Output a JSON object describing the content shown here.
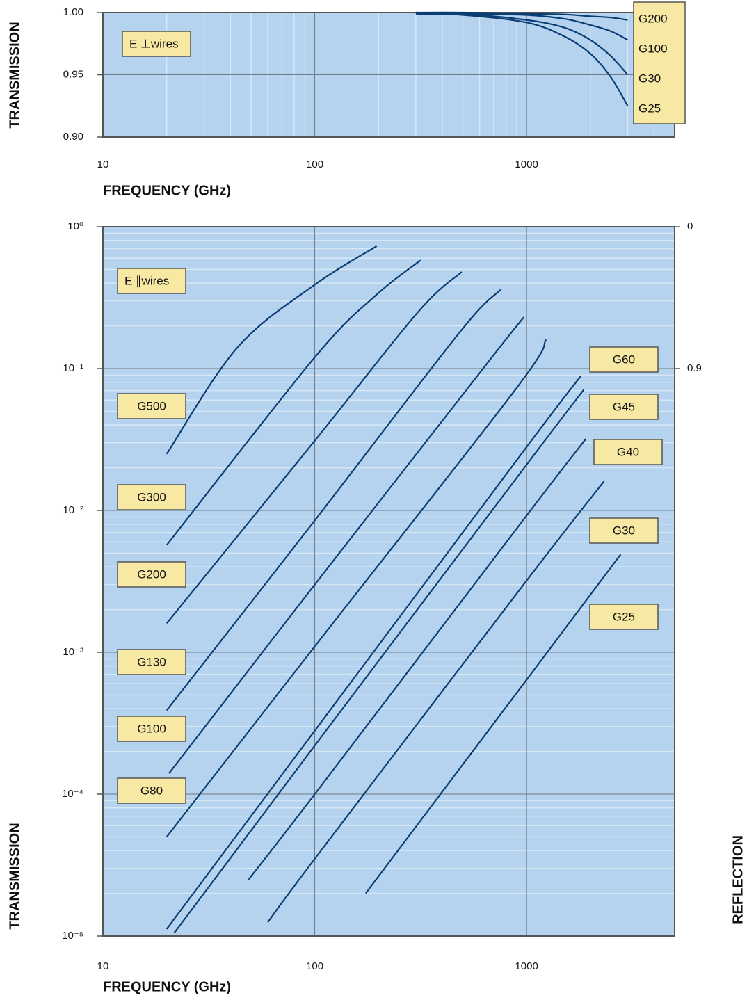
{
  "chart_data": [
    {
      "type": "line",
      "annotation": "E ⊥wires",
      "xlabel": "FREQUENCY (GHz)",
      "ylabel": "TRANSMISSION",
      "xlog": true,
      "xlim": [
        10,
        5000
      ],
      "xticks": [
        10,
        100,
        1000
      ],
      "ylim": [
        0.9,
        1.0
      ],
      "yticks": [
        {
          "value": 0.9,
          "label": "0.90"
        },
        0.95,
        {
          "value": 1.0,
          "label": "1.00"
        }
      ],
      "grid": true,
      "minor_grid": "x",
      "legend": "upper right",
      "series": [
        {
          "name": "G200",
          "color": "#0a3d73",
          "x": [
            300,
            500,
            1000,
            1500,
            2000,
            2500,
            3000
          ],
          "values": [
            1.0,
            1.0,
            0.999,
            0.9985,
            0.997,
            0.996,
            0.994
          ]
        },
        {
          "name": "G100",
          "color": "#0a3d73",
          "x": [
            300,
            500,
            1000,
            1500,
            2000,
            2500,
            3000
          ],
          "values": [
            1.0,
            0.999,
            0.998,
            0.995,
            0.99,
            0.985,
            0.978
          ]
        },
        {
          "name": "G30",
          "color": "#0a3d73",
          "x": [
            300,
            500,
            1000,
            1500,
            2000,
            2500,
            3000
          ],
          "values": [
            0.9995,
            0.999,
            0.994,
            0.988,
            0.978,
            0.965,
            0.95
          ]
        },
        {
          "name": "G25",
          "color": "#0a3d73",
          "x": [
            300,
            500,
            1000,
            1500,
            2000,
            2500,
            3000
          ],
          "values": [
            0.999,
            0.998,
            0.992,
            0.981,
            0.967,
            0.948,
            0.925
          ]
        }
      ]
    },
    {
      "type": "line",
      "annotation": "E ∥wires",
      "xlabel": "FREQUENCY (GHz)",
      "ylabel": "TRANSMISSION",
      "y2label": "REFLECTION",
      "xlog": true,
      "xlim": [
        10,
        5000
      ],
      "xticks": [
        10,
        100,
        1000
      ],
      "ylog": true,
      "ylim": [
        1e-05,
        1
      ],
      "yticks": [
        {
          "value": 1e-05,
          "label": "10⁻⁵"
        },
        {
          "value": 0.0001,
          "label": "10⁻⁴"
        },
        {
          "value": 0.001,
          "label": "10⁻³"
        },
        {
          "value": 0.01,
          "label": "10⁻²"
        },
        {
          "value": 0.1,
          "label": "10⁻¹"
        },
        {
          "value": 1,
          "label": "10⁰"
        }
      ],
      "y2scale": "log-complement",
      "y2lim": [
        0.99999,
        0
      ],
      "y2ticks": [
        0.9,
        0
      ],
      "grid": true,
      "minor_grid": "y",
      "legend": "curve-labels",
      "series": [
        {
          "name": "G500",
          "color": "#0a3d73",
          "x": [
            20,
            43,
            100,
            196
          ],
          "values": [
            0.025,
            0.14,
            0.39,
            0.73
          ]
        },
        {
          "name": "G300",
          "color": "#0a3d73",
          "x": [
            20,
            100,
            195,
            316
          ],
          "values": [
            0.0057,
            0.12,
            0.33,
            0.58
          ]
        },
        {
          "name": "G200",
          "color": "#0a3d73",
          "x": [
            20,
            100,
            307,
            494
          ],
          "values": [
            0.0016,
            0.031,
            0.25,
            0.48
          ]
        },
        {
          "name": "G130",
          "color": "#0a3d73",
          "x": [
            20,
            100,
            483,
            755
          ],
          "values": [
            0.00039,
            0.0085,
            0.18,
            0.36
          ]
        },
        {
          "name": "G100",
          "color": "#0a3d73",
          "x": [
            20.5,
            100,
            655,
            970
          ],
          "values": [
            0.00014,
            0.003,
            0.11,
            0.23
          ]
        },
        {
          "name": "G80",
          "color": "#0a3d73",
          "x": [
            20,
            100,
            885,
            1236
          ],
          "values": [
            5e-05,
            0.0011,
            0.071,
            0.16
          ]
        },
        {
          "name": "G60",
          "color": "#0a3d73",
          "x": [
            20,
            100,
            1000,
            1808
          ],
          "values": [
            1.12e-05,
            0.00028,
            0.028,
            0.089
          ]
        },
        {
          "name": "G45",
          "color": "#0a3d73",
          "x": [
            21.7,
            100,
            1000,
            1862
          ],
          "values": [
            1.05e-05,
            0.00022,
            0.021,
            0.071
          ]
        },
        {
          "name": "G40",
          "color": "#0a3d73",
          "x": [
            48.7,
            100,
            1000,
            1906
          ],
          "values": [
            2.5e-05,
            0.0001,
            0.0092,
            0.032
          ]
        },
        {
          "name": "G30",
          "color": "#0a3d73",
          "x": [
            60,
            100,
            1000,
            2317
          ],
          "values": [
            1.25e-05,
            3.5e-05,
            0.0032,
            0.016
          ]
        },
        {
          "name": "G25",
          "color": "#0a3d73",
          "x": [
            174,
            1000,
            2780
          ],
          "values": [
            2e-05,
            0.00064,
            0.0049
          ]
        }
      ]
    }
  ]
}
